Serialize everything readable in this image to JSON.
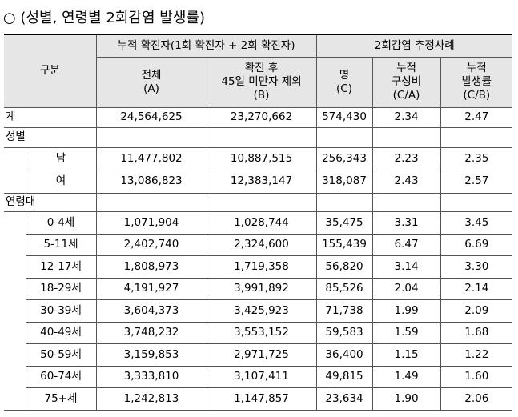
{
  "title": "○ (성별, 연령별 2회감염 발생률)",
  "table": {
    "header": {
      "category": "구분",
      "group_a": "누적 확진자(1회 확진자 + 2회 확진자)",
      "group_b": "2회감염 추정사례",
      "columns": [
        "전체\n(A)",
        "확진 후\n45일 미만자 제외\n(B)",
        "명\n(C)",
        "누적\n구성비\n(C/A)",
        "누적\n발생률\n(C/B)"
      ]
    },
    "total": [
      "계",
      "24,564,625",
      "23,270,662",
      "574,430",
      "2.34",
      "2.47"
    ],
    "groups": [
      {
        "label": "성별",
        "rows": [
          [
            "남",
            "11,477,802",
            "10,887,515",
            "256,343",
            "2.23",
            "2.35"
          ],
          [
            "여",
            "13,086,823",
            "12,383,147",
            "318,087",
            "2.43",
            "2.57"
          ]
        ]
      },
      {
        "label": "연령대",
        "rows": [
          [
            "0-4세",
            "1,071,904",
            "1,028,744",
            "35,475",
            "3.31",
            "3.45"
          ],
          [
            "5-11세",
            "2,402,740",
            "2,324,600",
            "155,439",
            "6.47",
            "6.69"
          ],
          [
            "12-17세",
            "1,808,973",
            "1,719,358",
            "56,820",
            "3.14",
            "3.30"
          ],
          [
            "18-29세",
            "4,191,927",
            "3,991,892",
            "85,526",
            "2.04",
            "2.14"
          ],
          [
            "30-39세",
            "3,604,373",
            "3,425,923",
            "71,738",
            "1.99",
            "2.09"
          ],
          [
            "40-49세",
            "3,748,232",
            "3,553,152",
            "59,583",
            "1.59",
            "1.68"
          ],
          [
            "50-59세",
            "3,159,853",
            "2,971,725",
            "36,400",
            "1.15",
            "1.22"
          ],
          [
            "60-74세",
            "3,333,810",
            "3,107,411",
            "49,815",
            "1.49",
            "1.60"
          ],
          [
            "75+세",
            "1,242,813",
            "1,147,857",
            "23,634",
            "1.90",
            "2.06"
          ]
        ]
      }
    ]
  }
}
